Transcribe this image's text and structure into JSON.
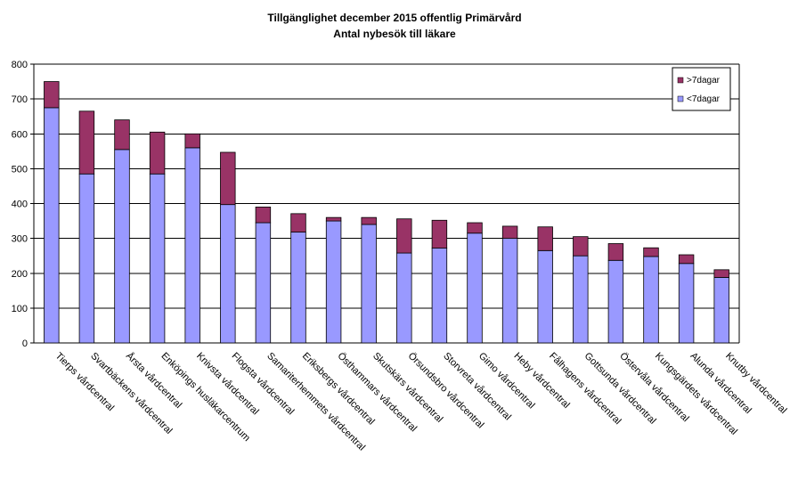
{
  "chart_data": {
    "type": "bar",
    "stacked": true,
    "title": "Tillgänglighet december 2015 offentlig Primärvård",
    "subtitle": "Antal nybesök till läkare",
    "ylim": [
      0,
      800
    ],
    "yticks": [
      0,
      100,
      200,
      300,
      400,
      500,
      600,
      700,
      800
    ],
    "grid": true,
    "legend_position": "top-right",
    "categories": [
      "Tierps vårdcentral",
      "Svartbäckens vårdcentral",
      "Årsta vårdcentral",
      "Enköpings husläkarcentrum",
      "Knivsta vårdcentral",
      "Flogsta vårdcentral",
      "Samariterhemmets vårdcentral",
      "Eriksbergs vårdcentral",
      "Östhammars vårdcentral",
      "Skutskärs vårdcentral",
      "Örsundsbro vårdcentral",
      "Storvreta vårdcentral",
      "Gimo vårdcentral",
      "Heby vårdcentral",
      "Fålhagens vårdcentral",
      "Gottsunda vårdcentral",
      "Östervåla vårdcentral",
      "Kungsgärdets vårdcentral",
      "Alunda vårdcentral",
      "Knutby vårdcentral"
    ],
    "series": [
      {
        "name": "<7dagar",
        "color": "#9999FF",
        "values": [
          675,
          485,
          555,
          485,
          560,
          397,
          345,
          318,
          350,
          340,
          258,
          272,
          315,
          300,
          265,
          250,
          237,
          248,
          228,
          188
        ]
      },
      {
        "name": ">7dagar",
        "color": "#993366",
        "values": [
          75,
          180,
          85,
          120,
          40,
          150,
          45,
          53,
          10,
          20,
          98,
          80,
          30,
          35,
          68,
          55,
          48,
          25,
          25,
          22
        ]
      }
    ]
  }
}
